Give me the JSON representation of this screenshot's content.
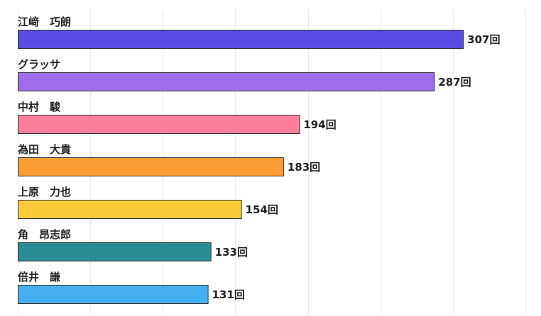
{
  "chart_data": {
    "type": "bar",
    "orientation": "horizontal",
    "categories": [
      "江﨑　巧朗",
      "グラッサ",
      "中村　駿",
      "為田　大貴",
      "上原　力也",
      "角　昂志郎",
      "倍井　謙"
    ],
    "values": [
      307,
      287,
      194,
      183,
      154,
      133,
      131
    ],
    "value_labels": [
      "307回",
      "287回",
      "194回",
      "183回",
      "154回",
      "133回",
      "131回"
    ],
    "colors": [
      "#5b4ce3",
      "#a06ce8",
      "#fb7f9c",
      "#fd9c34",
      "#fdcb3a",
      "#2b8c96",
      "#44b0ef"
    ],
    "xlim": [
      0,
      350
    ],
    "grid": true,
    "legend": false
  }
}
